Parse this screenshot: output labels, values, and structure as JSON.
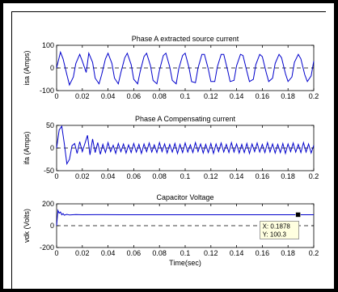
{
  "chart_data": [
    {
      "type": "line",
      "title": "Phase A extracted source current",
      "ylabel": "isa (Amps)",
      "xlabel": "",
      "xlim": [
        0,
        0.2
      ],
      "ylim": [
        -100,
        100
      ],
      "x_ticks": [
        "0",
        "0.02",
        "0.04",
        "0.06",
        "0.08",
        "0.1",
        "0.12",
        "0.14",
        "0.16",
        "0.18",
        "0.2"
      ],
      "y_ticks": [
        "-100",
        "0",
        "100"
      ],
      "series": [
        {
          "color": "#0000cc",
          "x": [
            0,
            0.003,
            0.005,
            0.008,
            0.01,
            0.013,
            0.015,
            0.018,
            0.02,
            0.023,
            0.025,
            0.028,
            0.03,
            0.033,
            0.035,
            0.038,
            0.04,
            0.043,
            0.045,
            0.048,
            0.05,
            0.053,
            0.055,
            0.058,
            0.06,
            0.063,
            0.065,
            0.068,
            0.07,
            0.073,
            0.075,
            0.078,
            0.08,
            0.083,
            0.085,
            0.088,
            0.09,
            0.093,
            0.095,
            0.098,
            0.1,
            0.103,
            0.105,
            0.108,
            0.11,
            0.113,
            0.115,
            0.118,
            0.12,
            0.123,
            0.125,
            0.128,
            0.13,
            0.133,
            0.135,
            0.138,
            0.14,
            0.143,
            0.145,
            0.148,
            0.15,
            0.153,
            0.155,
            0.158,
            0.16,
            0.163,
            0.165,
            0.168,
            0.17,
            0.173,
            0.175,
            0.178,
            0.18,
            0.183,
            0.185,
            0.188,
            0.19,
            0.193,
            0.195,
            0.198,
            0.2
          ],
          "y": [
            0,
            70,
            40,
            -30,
            -75,
            -40,
            20,
            60,
            30,
            -20,
            65,
            25,
            -45,
            -70,
            -30,
            40,
            65,
            20,
            -45,
            -70,
            -20,
            45,
            65,
            15,
            -50,
            -70,
            -15,
            50,
            65,
            10,
            -55,
            -70,
            -10,
            55,
            65,
            5,
            -55,
            -70,
            -5,
            55,
            65,
            0,
            -60,
            -65,
            0,
            60,
            60,
            -5,
            -60,
            -60,
            5,
            60,
            60,
            -10,
            -60,
            -55,
            10,
            60,
            55,
            -15,
            -60,
            -50,
            15,
            60,
            50,
            -20,
            -60,
            -45,
            20,
            60,
            45,
            -25,
            -60,
            -40,
            25,
            60,
            40,
            -30,
            -60,
            -35,
            30
          ]
        }
      ]
    },
    {
      "type": "line",
      "title": "Phase A Compensating current",
      "ylabel": "ifa (Amps)",
      "xlabel": "",
      "xlim": [
        0,
        0.2
      ],
      "ylim": [
        -50,
        50
      ],
      "x_ticks": [
        "0",
        "0.02",
        "0.04",
        "0.06",
        "0.08",
        "0.1",
        "0.12",
        "0.14",
        "0.16",
        "0.18",
        "0.2"
      ],
      "y_ticks": [
        "-50",
        "0",
        "50"
      ],
      "series": [
        {
          "color": "#0000cc",
          "x": [
            0,
            0.002,
            0.004,
            0.006,
            0.008,
            0.01,
            0.012,
            0.014,
            0.016,
            0.018,
            0.02,
            0.022,
            0.024,
            0.026,
            0.028,
            0.03,
            0.032,
            0.034,
            0.036,
            0.038,
            0.04,
            0.042,
            0.044,
            0.046,
            0.048,
            0.05,
            0.052,
            0.054,
            0.056,
            0.058,
            0.06,
            0.062,
            0.064,
            0.066,
            0.068,
            0.07,
            0.072,
            0.074,
            0.076,
            0.078,
            0.08,
            0.082,
            0.084,
            0.086,
            0.088,
            0.09,
            0.092,
            0.094,
            0.096,
            0.098,
            0.1,
            0.102,
            0.104,
            0.106,
            0.108,
            0.11,
            0.112,
            0.114,
            0.116,
            0.118,
            0.12,
            0.122,
            0.124,
            0.126,
            0.128,
            0.13,
            0.132,
            0.134,
            0.136,
            0.138,
            0.14,
            0.142,
            0.144,
            0.146,
            0.148,
            0.15,
            0.152,
            0.154,
            0.156,
            0.158,
            0.16,
            0.162,
            0.164,
            0.166,
            0.168,
            0.17,
            0.172,
            0.174,
            0.176,
            0.178,
            0.18,
            0.182,
            0.184,
            0.186,
            0.188,
            0.19,
            0.192,
            0.194,
            0.196,
            0.198,
            0.2
          ],
          "y": [
            0,
            40,
            48,
            10,
            -35,
            -25,
            5,
            10,
            -12,
            14,
            -8,
            10,
            28,
            -15,
            20,
            -10,
            12,
            -14,
            8,
            -10,
            12,
            -8,
            6,
            -12,
            10,
            -8,
            9,
            -11,
            7,
            -10,
            10,
            -9,
            8,
            -12,
            9,
            -8,
            11,
            -9,
            7,
            -10,
            12,
            -8,
            9,
            -11,
            8,
            -9,
            10,
            -12,
            8,
            -10,
            11,
            -9,
            7,
            -10,
            12,
            -8,
            9,
            -11,
            8,
            -10,
            10,
            -12,
            9,
            -8,
            11,
            -9,
            8,
            -10,
            12,
            -9,
            9,
            -11,
            8,
            -10,
            10,
            -12,
            9,
            -8,
            11,
            -9,
            8,
            -10,
            12,
            -9,
            9,
            -11,
            8,
            -10,
            10,
            -12,
            9,
            -8,
            11,
            -9,
            8,
            -10,
            12,
            -9,
            9,
            -11,
            6
          ]
        }
      ]
    },
    {
      "type": "line",
      "title": "Capacitor Voltage",
      "ylabel": "vdk (Volts)",
      "xlabel": "Time(sec)",
      "xlim": [
        0,
        0.2
      ],
      "ylim": [
        -200,
        200
      ],
      "x_ticks": [
        "0",
        "0.02",
        "0.04",
        "0.06",
        "0.08",
        "0.1",
        "0.12",
        "0.14",
        "0.16",
        "0.18",
        "0.2"
      ],
      "y_ticks": [
        "-200",
        "0",
        "200"
      ],
      "series": [
        {
          "color": "#0000cc",
          "x": [
            0,
            0.001,
            0.002,
            0.003,
            0.004,
            0.005,
            0.006,
            0.008,
            0.01,
            0.015,
            0.02,
            0.03,
            0.05,
            0.08,
            0.1,
            0.12,
            0.15,
            0.17,
            0.1878,
            0.2
          ],
          "y": [
            0,
            140,
            115,
            125,
            100,
            110,
            96,
            104,
            98,
            102,
            100,
            101,
            100,
            100,
            100,
            100,
            100,
            100,
            100.3,
            100
          ]
        }
      ],
      "datatip": {
        "x_label": "X: 0.1878",
        "y_label": "Y: 100.3",
        "x": 0.1878,
        "y": 100.3
      }
    }
  ]
}
